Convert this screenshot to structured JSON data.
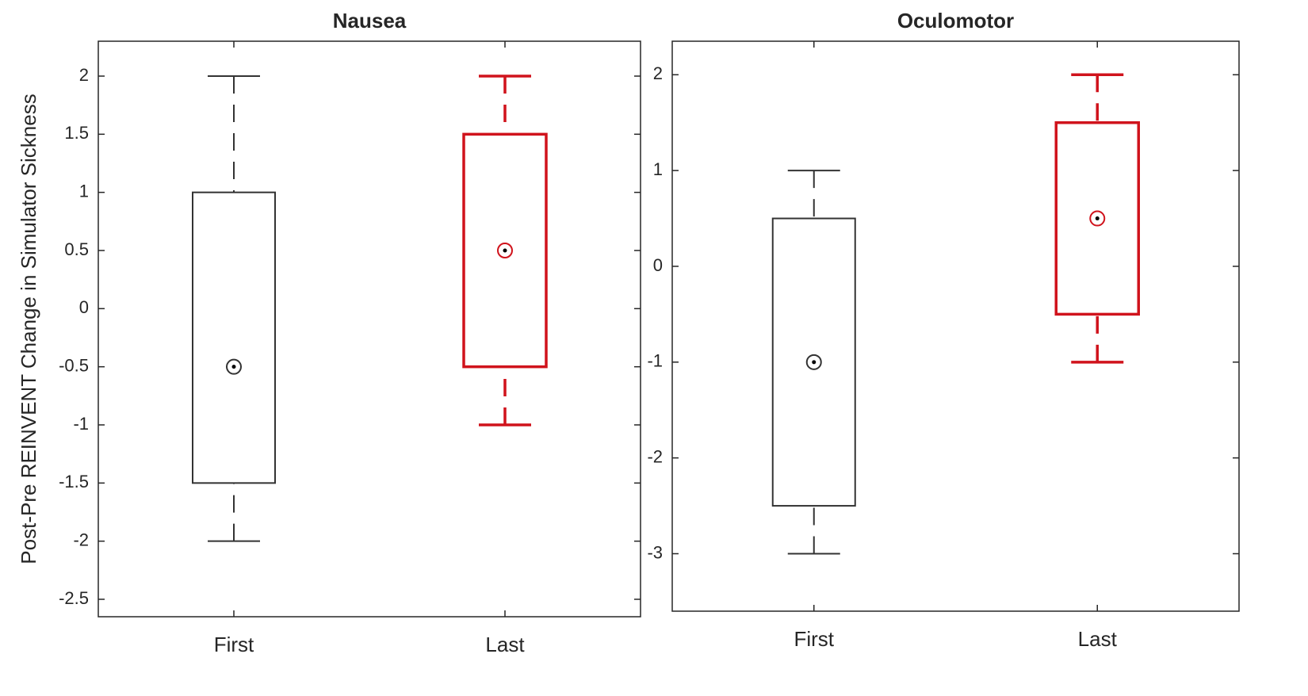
{
  "chart_data": [
    {
      "type": "box",
      "title": "Nausea",
      "ylabel": "Post-Pre REINVENT Change in Simulator Sickness",
      "categories": [
        "First",
        "Last"
      ],
      "boxes": [
        {
          "whislo": -2,
          "q1": -1.5,
          "med": -0.5,
          "q3": 1,
          "whishi": 2
        },
        {
          "whislo": -1,
          "q1": -0.5,
          "med": 0.5,
          "q3": 1.5,
          "whishi": 2
        }
      ],
      "colors": [
        "#333333",
        "#d0131c"
      ],
      "ylim": [
        -2.65,
        2.3
      ],
      "yticks": [
        -2.5,
        -2,
        -1.5,
        -1,
        -0.5,
        0,
        0.5,
        1,
        1.5,
        2
      ]
    },
    {
      "type": "box",
      "title": "Oculomotor",
      "categories": [
        "First",
        "Last"
      ],
      "boxes": [
        {
          "whislo": -3,
          "q1": -2.5,
          "med": -1,
          "q3": 0.5,
          "whishi": 1
        },
        {
          "whislo": -1,
          "q1": -0.5,
          "med": 0.5,
          "q3": 1.5,
          "whishi": 2
        }
      ],
      "colors": [
        "#333333",
        "#d0131c"
      ],
      "ylim": [
        -3.6,
        2.35
      ],
      "yticks": [
        -3,
        -2,
        -1,
        0,
        1,
        2
      ]
    }
  ]
}
